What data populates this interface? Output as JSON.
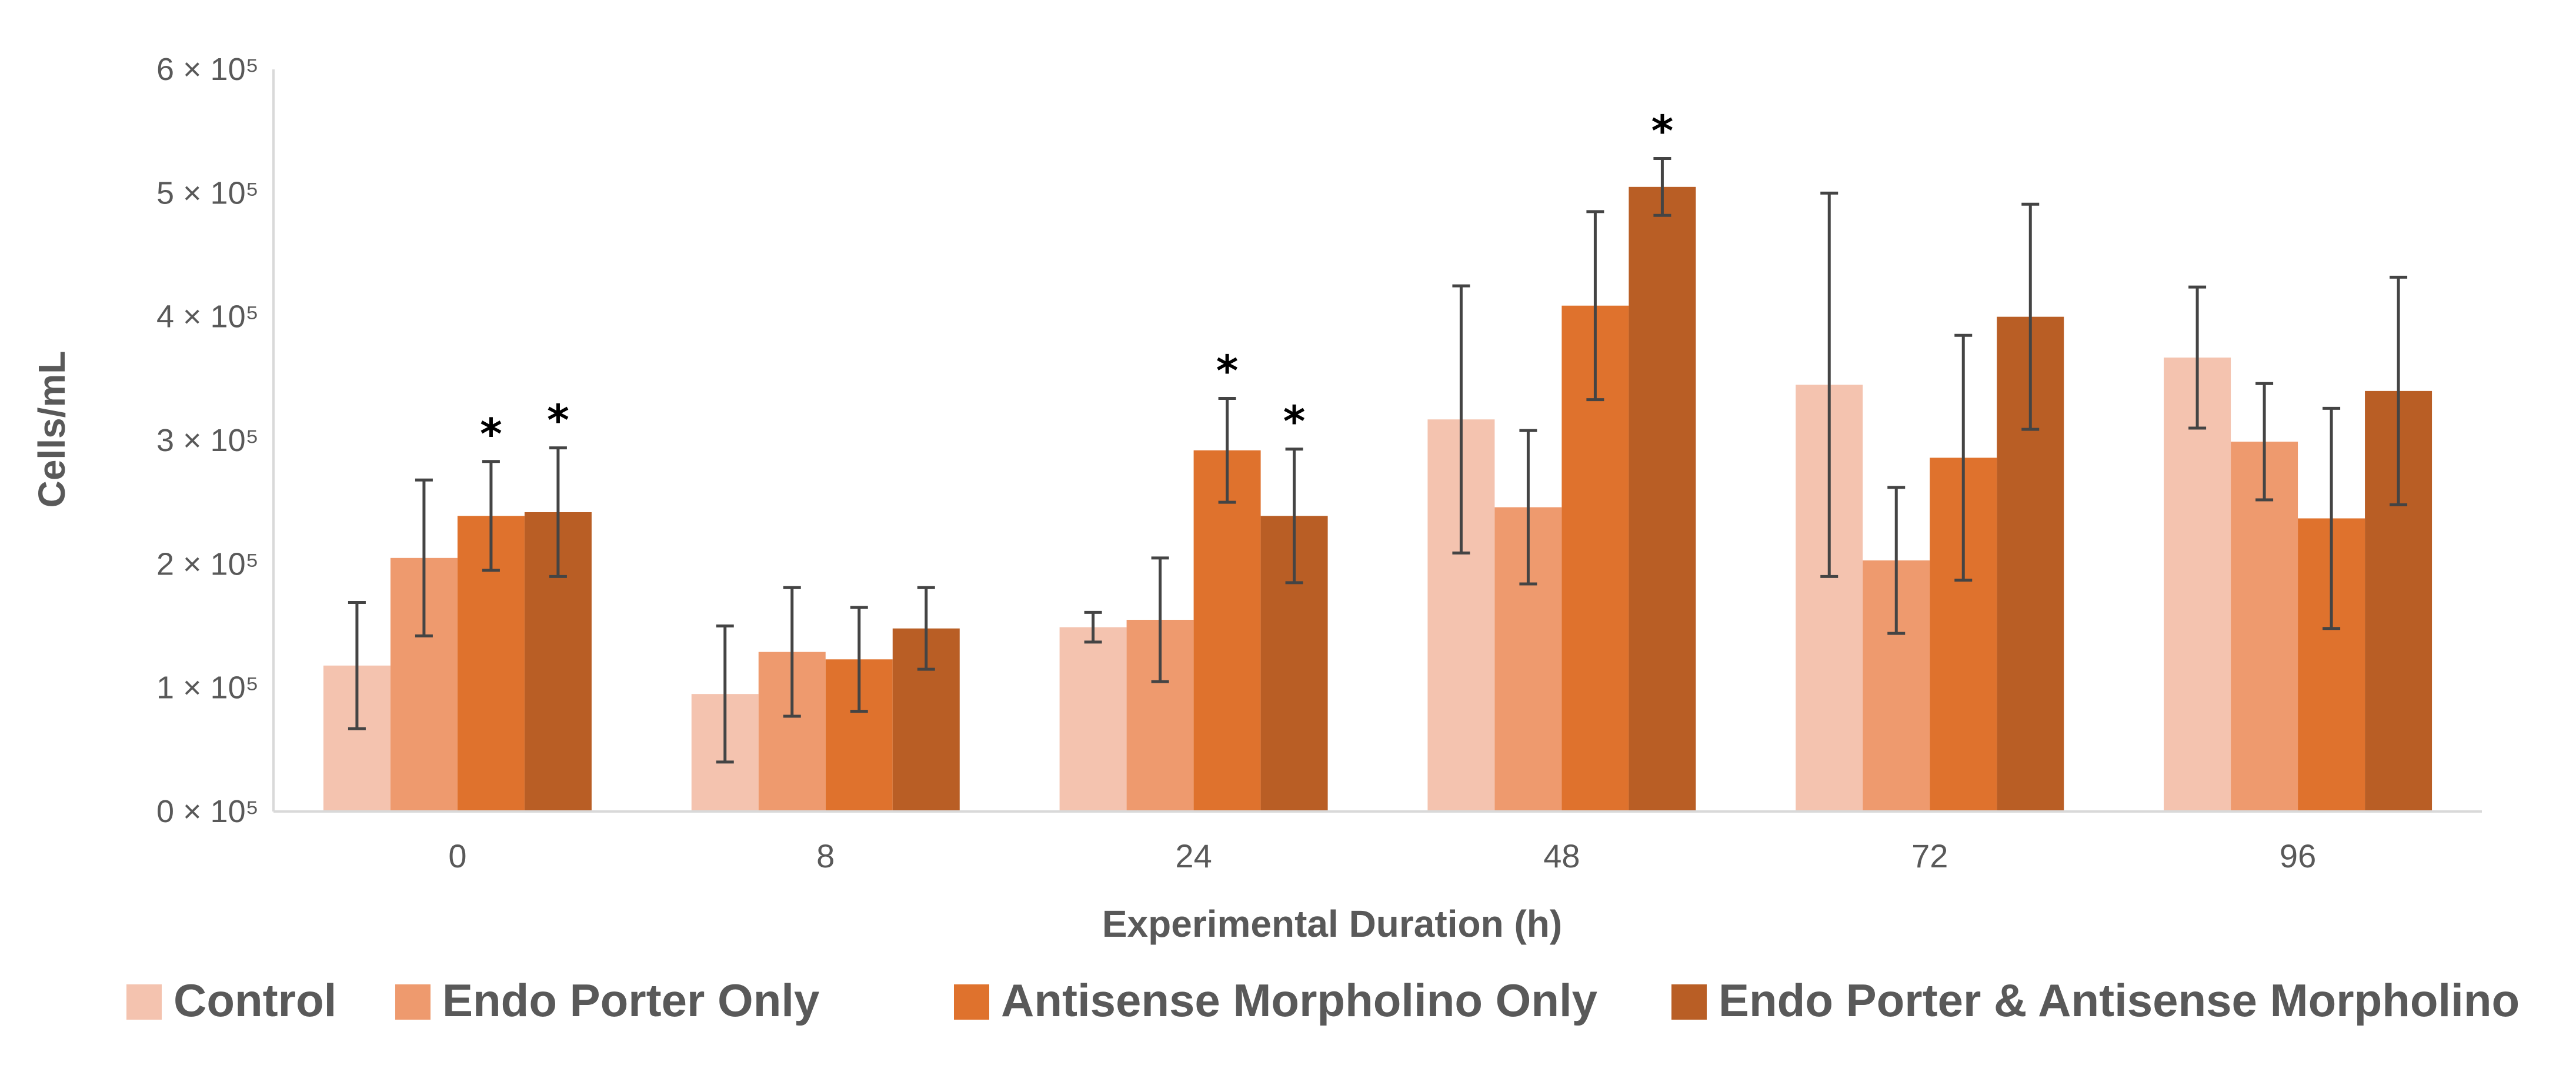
{
  "chart_data": {
    "type": "bar",
    "title": "",
    "xlabel": "Experimental Duration (h)",
    "ylabel": "Cells/mL",
    "ylim": [
      0,
      600000
    ],
    "y_ticks": [
      {
        "value": 0,
        "label": "0 × 10⁵"
      },
      {
        "value": 100000,
        "label": "1 × 10⁵"
      },
      {
        "value": 200000,
        "label": "2 × 10⁵"
      },
      {
        "value": 300000,
        "label": "3 × 10⁵"
      },
      {
        "value": 400000,
        "label": "4 × 10⁵"
      },
      {
        "value": 500000,
        "label": "5 × 10⁵"
      },
      {
        "value": 600000,
        "label": "6 × 10⁵"
      }
    ],
    "categories": [
      "0",
      "8",
      "24",
      "48",
      "72",
      "96"
    ],
    "legend_position": "bottom",
    "significance_marker": "*",
    "series": [
      {
        "name": "Control",
        "color": "#F4C3AF",
        "values": [
          118000,
          95000,
          149000,
          317000,
          345000,
          367000
        ],
        "errors": [
          51000,
          55000,
          12000,
          108000,
          155000,
          57000
        ],
        "significant": [
          false,
          false,
          false,
          false,
          false,
          false
        ]
      },
      {
        "name": "Endo Porter  Only",
        "color": "#EE9A6E",
        "values": [
          205000,
          129000,
          155000,
          246000,
          203000,
          299000
        ],
        "errors": [
          63000,
          52000,
          50000,
          62000,
          59000,
          47000
        ],
        "significant": [
          false,
          false,
          false,
          false,
          false,
          false
        ]
      },
      {
        "name": "Antisense Morpholino Only",
        "color": "#DF722D",
        "values": [
          239000,
          123000,
          292000,
          409000,
          286000,
          237000
        ],
        "errors": [
          44000,
          42000,
          42000,
          76000,
          99000,
          89000
        ],
        "significant": [
          true,
          false,
          true,
          false,
          false,
          false
        ]
      },
      {
        "name": "Endo Porter & Antisense Morpholino",
        "color": "#B95E25",
        "values": [
          242000,
          148000,
          239000,
          505000,
          400000,
          340000
        ],
        "errors": [
          52000,
          33000,
          54000,
          23000,
          91000,
          92000
        ],
        "significant": [
          true,
          false,
          true,
          true,
          false,
          false
        ]
      }
    ]
  }
}
